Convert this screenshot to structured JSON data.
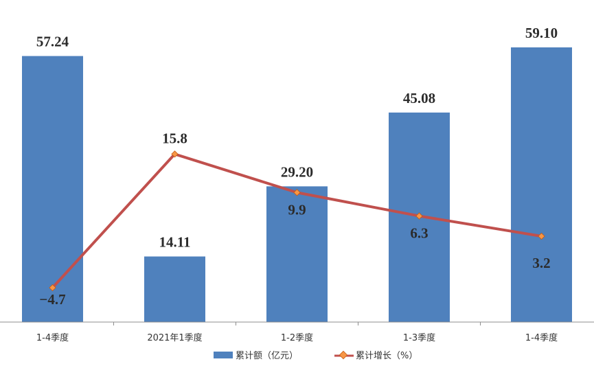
{
  "chart_data": {
    "type": "bar+line",
    "categories": [
      "1-4季度",
      "2021年1季度",
      "1-2季度",
      "1-3季度",
      "1-4季度"
    ],
    "series": [
      {
        "name": "累计额（亿元）",
        "type": "bar",
        "values": [
          57.24,
          14.11,
          29.2,
          45.08,
          59.1
        ],
        "value_labels": [
          "57.24",
          "14.11",
          "29.20",
          "45.08",
          "59.10"
        ],
        "color": "#4f81bd"
      },
      {
        "name": "累计增长（%）",
        "type": "line",
        "values": [
          -4.7,
          15.8,
          9.9,
          6.3,
          3.2
        ],
        "value_labels": [
          "−4.7",
          "15.8",
          "9.9",
          "6.3",
          "3.2"
        ],
        "color": "#c0504d",
        "marker_color": "#f79646"
      }
    ],
    "bar_axis_range": [
      0,
      60
    ],
    "line_axis_range": [
      -7,
      30
    ],
    "grid": false,
    "legend": "bottom"
  }
}
